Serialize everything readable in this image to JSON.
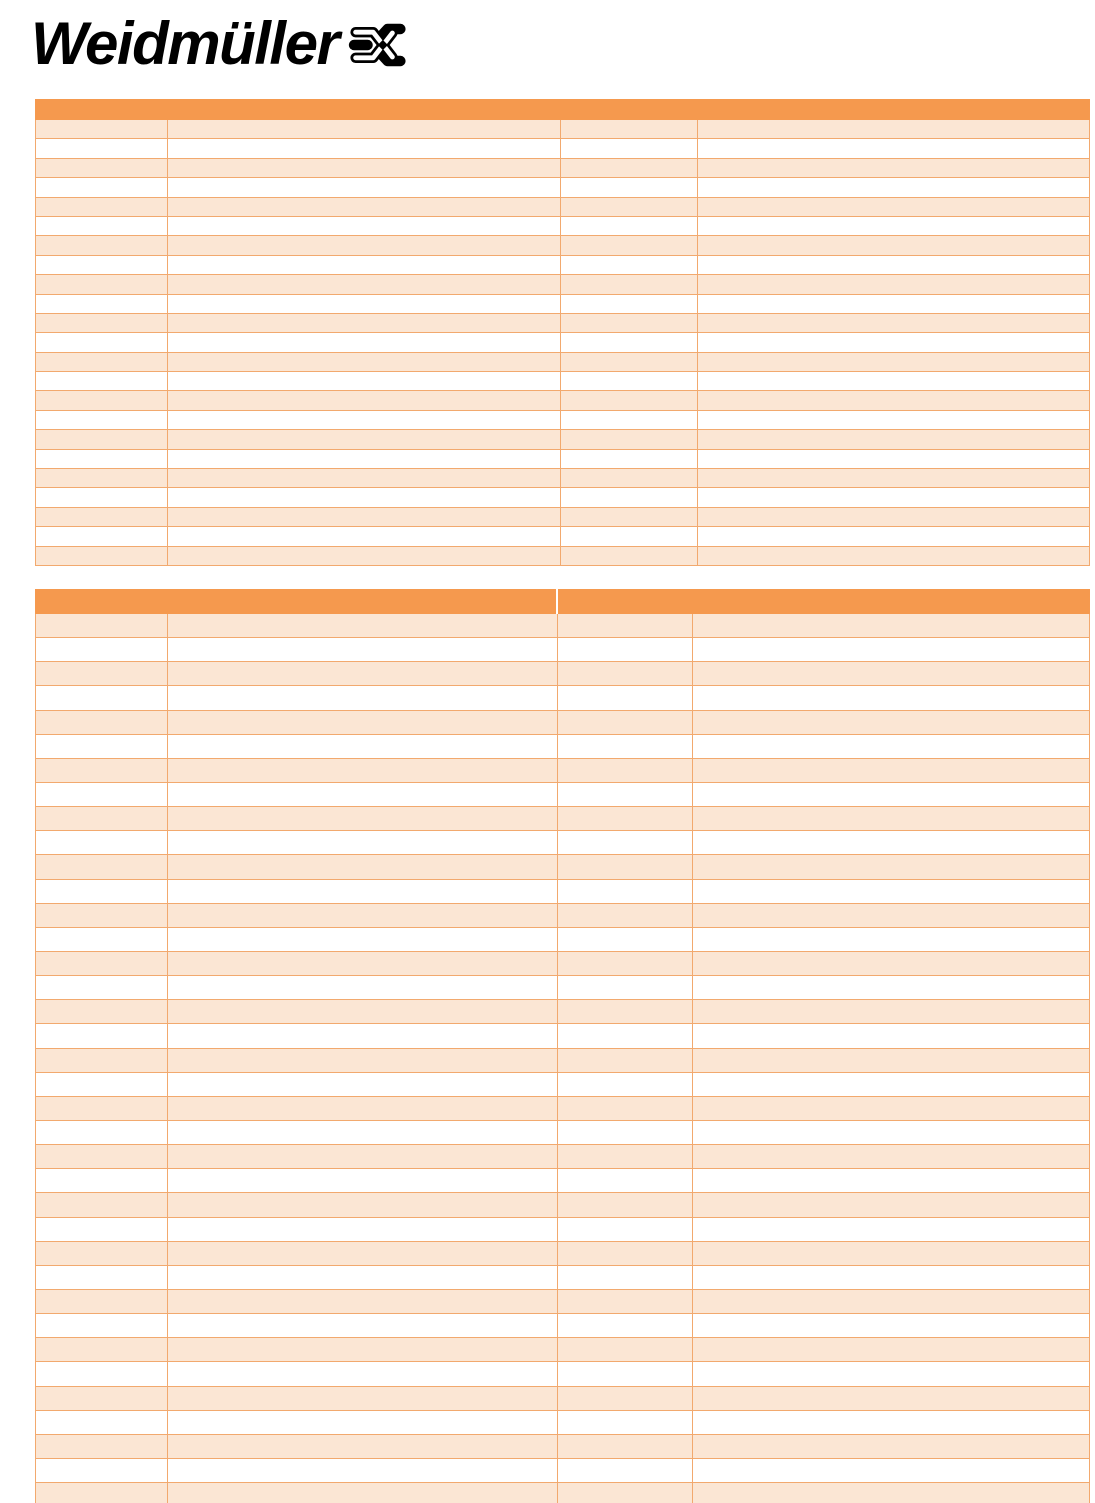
{
  "brand": {
    "wordmark": "Weidmüller"
  },
  "colors": {
    "header_bar": "#F5994E",
    "row_tint": "#FBE6D4",
    "row_alt": "#FFFFFF",
    "grid_line": "#F2A96E",
    "logo_black": "#000000"
  },
  "upper_table": {
    "header_cells": [
      ""
    ],
    "column_count": 4,
    "row_count": 23,
    "all_cells_blank": true
  },
  "lower_table": {
    "header_cells": [
      "",
      ""
    ],
    "column_count": 4,
    "row_count": 37,
    "all_cells_blank": true
  }
}
